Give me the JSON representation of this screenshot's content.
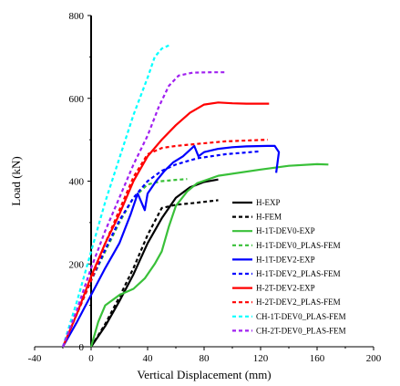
{
  "chart_data": {
    "type": "line",
    "title": "",
    "xlabel": "Vertical Displacement (mm)",
    "ylabel": "Load (kN)",
    "xlim": [
      -40,
      200
    ],
    "ylim": [
      0,
      800
    ],
    "xticks": [
      "-40",
      "0",
      "40",
      "80",
      "120",
      "160",
      "200"
    ],
    "yticks": [
      "0",
      "200",
      "400",
      "600",
      "800"
    ],
    "xtick_values": [
      -40,
      0,
      40,
      80,
      120,
      160,
      200
    ],
    "ytick_values": [
      0,
      200,
      400,
      600,
      800
    ],
    "grid": false,
    "legend_position": "lower-right",
    "series": [
      {
        "name": "H-EXP",
        "color": "#000000",
        "dash": "solid",
        "points": [
          [
            0,
            0
          ],
          [
            10,
            50
          ],
          [
            20,
            110
          ],
          [
            30,
            175
          ],
          [
            40,
            250
          ],
          [
            50,
            310
          ],
          [
            60,
            360
          ],
          [
            70,
            385
          ],
          [
            80,
            398
          ],
          [
            90,
            404
          ]
        ]
      },
      {
        "name": "H-FEM",
        "color": "#000000",
        "dash": "dashed",
        "points": [
          [
            0,
            0
          ],
          [
            10,
            55
          ],
          [
            20,
            120
          ],
          [
            30,
            190
          ],
          [
            40,
            270
          ],
          [
            50,
            335
          ],
          [
            60,
            343
          ],
          [
            75,
            348
          ],
          [
            90,
            354
          ]
        ]
      },
      {
        "name": "H-1T-DEV0-EXP",
        "color": "#39c039",
        "dash": "solid",
        "points": [
          [
            0,
            0
          ],
          [
            5,
            60
          ],
          [
            10,
            100
          ],
          [
            20,
            125
          ],
          [
            30,
            140
          ],
          [
            38,
            165
          ],
          [
            45,
            200
          ],
          [
            50,
            230
          ],
          [
            55,
            290
          ],
          [
            60,
            340
          ],
          [
            68,
            375
          ],
          [
            75,
            395
          ],
          [
            90,
            413
          ],
          [
            120,
            428
          ],
          [
            140,
            437
          ],
          [
            160,
            441
          ],
          [
            168,
            440
          ]
        ]
      },
      {
        "name": "H-1T-DEV0_PLAS-FEM",
        "color": "#39c039",
        "dash": "dashed",
        "points": [
          [
            -20,
            0
          ],
          [
            -10,
            80
          ],
          [
            0,
            160
          ],
          [
            10,
            230
          ],
          [
            20,
            300
          ],
          [
            30,
            360
          ],
          [
            40,
            392
          ],
          [
            50,
            400
          ],
          [
            60,
            403
          ],
          [
            68,
            405
          ]
        ]
      },
      {
        "name": "H-1T-DEV2-EXP",
        "color": "#0000ff",
        "dash": "solid",
        "points": [
          [
            -20,
            0
          ],
          [
            -10,
            60
          ],
          [
            0,
            125
          ],
          [
            10,
            190
          ],
          [
            20,
            250
          ],
          [
            28,
            320
          ],
          [
            33,
            370
          ],
          [
            38,
            330
          ],
          [
            40,
            370
          ],
          [
            46,
            400
          ],
          [
            52,
            425
          ],
          [
            58,
            445
          ],
          [
            65,
            460
          ],
          [
            73,
            485
          ],
          [
            76,
            460
          ],
          [
            80,
            470
          ],
          [
            90,
            478
          ],
          [
            100,
            482
          ],
          [
            110,
            484
          ],
          [
            125,
            485
          ],
          [
            130,
            485
          ],
          [
            133,
            470
          ],
          [
            131,
            420
          ]
        ]
      },
      {
        "name": "H-1T-DEV2_PLAS-FEM",
        "color": "#0000ff",
        "dash": "dashed",
        "points": [
          [
            -20,
            0
          ],
          [
            -10,
            80
          ],
          [
            0,
            160
          ],
          [
            10,
            235
          ],
          [
            20,
            305
          ],
          [
            30,
            360
          ],
          [
            40,
            400
          ],
          [
            50,
            425
          ],
          [
            60,
            440
          ],
          [
            75,
            455
          ],
          [
            95,
            465
          ],
          [
            120,
            472
          ]
        ]
      },
      {
        "name": "H-2T-DEV2-EXP",
        "color": "#ff0000",
        "dash": "solid",
        "points": [
          [
            -20,
            0
          ],
          [
            -10,
            80
          ],
          [
            0,
            170
          ],
          [
            10,
            250
          ],
          [
            20,
            320
          ],
          [
            30,
            400
          ],
          [
            40,
            460
          ],
          [
            50,
            500
          ],
          [
            60,
            535
          ],
          [
            70,
            565
          ],
          [
            80,
            585
          ],
          [
            90,
            590
          ],
          [
            100,
            588
          ],
          [
            110,
            587
          ],
          [
            126,
            587
          ]
        ]
      },
      {
        "name": "H-2T-DEV2_PLAS-FEM",
        "color": "#ff0000",
        "dash": "dashed",
        "points": [
          [
            -20,
            0
          ],
          [
            -10,
            80
          ],
          [
            0,
            160
          ],
          [
            10,
            250
          ],
          [
            20,
            330
          ],
          [
            30,
            410
          ],
          [
            40,
            465
          ],
          [
            50,
            480
          ],
          [
            60,
            485
          ],
          [
            75,
            490
          ],
          [
            95,
            496
          ],
          [
            125,
            500
          ]
        ]
      },
      {
        "name": "CH-1T-DEV0_PLAS-FEM",
        "color": "#00ffff",
        "dash": "dashed",
        "points": [
          [
            -20,
            0
          ],
          [
            -10,
            110
          ],
          [
            0,
            230
          ],
          [
            10,
            350
          ],
          [
            20,
            455
          ],
          [
            30,
            560
          ],
          [
            40,
            650
          ],
          [
            45,
            700
          ],
          [
            50,
            720
          ],
          [
            55,
            728
          ]
        ]
      },
      {
        "name": "CH-2T-DEV0_PLAS-FEM",
        "color": "#a020f0",
        "dash": "dashed",
        "points": [
          [
            -20,
            0
          ],
          [
            -10,
            90
          ],
          [
            0,
            190
          ],
          [
            10,
            280
          ],
          [
            20,
            360
          ],
          [
            30,
            440
          ],
          [
            40,
            510
          ],
          [
            48,
            580
          ],
          [
            55,
            630
          ],
          [
            62,
            655
          ],
          [
            72,
            662
          ],
          [
            85,
            663
          ],
          [
            95,
            663
          ]
        ]
      }
    ]
  }
}
